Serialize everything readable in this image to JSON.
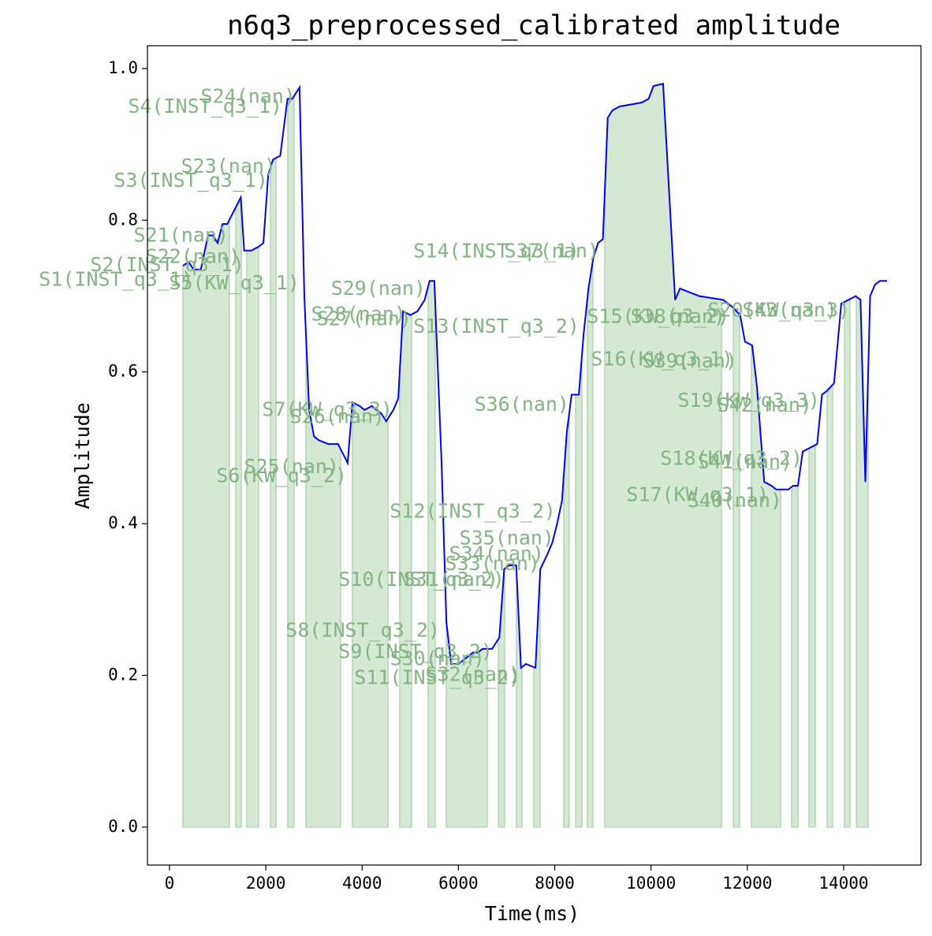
{
  "chart_data": {
    "type": "line",
    "title": "n6q3_preprocessed_calibrated amplitude",
    "xlabel": "Time(ms)",
    "ylabel": "Amplitude",
    "xlim": [
      -458,
      15605
    ],
    "ylim": [
      -0.05,
      1.03
    ],
    "xticks": [
      0,
      2000,
      4000,
      6000,
      8000,
      10000,
      12000,
      14000
    ],
    "yticks": [
      {
        "value": 0,
        "label": "0.0"
      },
      0.2,
      0.4,
      0.6,
      0.8,
      {
        "value": 1,
        "label": "1.0"
      }
    ],
    "x": [
      278,
      400,
      500,
      650,
      800,
      900,
      1000,
      1100,
      1200,
      1480,
      1550,
      1700,
      1850,
      1950,
      2050,
      2150,
      2300,
      2450,
      2550,
      2700,
      2800,
      2900,
      3000,
      3100,
      3300,
      3500,
      3700,
      3800,
      3950,
      4050,
      4200,
      4400,
      4500,
      4650,
      4750,
      4850,
      5000,
      5150,
      5300,
      5400,
      5500,
      5650,
      5750,
      5850,
      6000,
      6100,
      6200,
      6300,
      6400,
      6500,
      6700,
      6850,
      6950,
      7050,
      7200,
      7300,
      7400,
      7600,
      7700,
      7850,
      7950,
      8050,
      8150,
      8250,
      8350,
      8500,
      8600,
      8700,
      8800,
      8900,
      9000,
      9100,
      9200,
      9350,
      9800,
      9950,
      10050,
      10250,
      10500,
      10600,
      10800,
      11000,
      11500,
      11700,
      11850,
      11950,
      12100,
      12200,
      12350,
      12500,
      12600,
      12850,
      12950,
      13050,
      13150,
      13300,
      13450,
      13550,
      13650,
      13800,
      13950,
      14100,
      14250,
      14350,
      14450,
      14550,
      14650,
      14750,
      14900
    ],
    "series": [
      {
        "color": "#0000ff",
        "values": [
          0.74,
          0.745,
          0.735,
          0.735,
          0.78,
          0.78,
          0.77,
          0.795,
          0.795,
          0.83,
          0.76,
          0.76,
          0.765,
          0.77,
          0.86,
          0.88,
          0.885,
          0.96,
          0.96,
          0.975,
          0.7,
          0.55,
          0.515,
          0.51,
          0.505,
          0.505,
          0.48,
          0.56,
          0.555,
          0.55,
          0.555,
          0.545,
          0.535,
          0.55,
          0.565,
          0.68,
          0.675,
          0.68,
          0.695,
          0.72,
          0.72,
          0.48,
          0.27,
          0.215,
          0.215,
          0.22,
          0.225,
          0.23,
          0.23,
          0.235,
          0.235,
          0.25,
          0.34,
          0.345,
          0.345,
          0.21,
          0.215,
          0.21,
          0.34,
          0.36,
          0.375,
          0.4,
          0.43,
          0.52,
          0.57,
          0.57,
          0.65,
          0.71,
          0.75,
          0.77,
          0.775,
          0.935,
          0.945,
          0.95,
          0.955,
          0.96,
          0.977,
          0.98,
          0.695,
          0.71,
          0.705,
          0.7,
          0.695,
          0.685,
          0.675,
          0.64,
          0.635,
          0.58,
          0.455,
          0.45,
          0.445,
          0.445,
          0.45,
          0.45,
          0.495,
          0.5,
          0.505,
          0.57,
          0.575,
          0.585,
          0.69,
          0.695,
          0.7,
          0.695,
          0.455,
          0.7,
          0.715,
          0.72,
          0.72
        ]
      }
    ],
    "fill_color": "#d5e8d4",
    "fill_regions": [
      [
        278,
        1244
      ],
      [
        1375,
        1490
      ],
      [
        1605,
        1850
      ],
      [
        2096,
        2211
      ],
      [
        2456,
        2587
      ],
      [
        2833,
        3553
      ],
      [
        3799,
        4536
      ],
      [
        4781,
        5027
      ],
      [
        5371,
        5518
      ],
      [
        5747,
        6599
      ],
      [
        6828,
        6959
      ],
      [
        7205,
        7320
      ],
      [
        7565,
        7696
      ],
      [
        8187,
        8302
      ],
      [
        8433,
        8564
      ],
      [
        8678,
        8793
      ],
      [
        9039,
        11462
      ],
      [
        11708,
        11839
      ],
      [
        12084,
        12690
      ],
      [
        12920,
        13050
      ],
      [
        13280,
        13411
      ],
      [
        13656,
        13771
      ],
      [
        14017,
        14131
      ],
      [
        14262,
        14508
      ]
    ],
    "annotations": [
      {
        "text": "S1(INST_q3_1)",
        "x": 491,
        "y": 0.721
      },
      {
        "text": "S2(INST_q3_1)",
        "x": 1556,
        "y": 0.74
      },
      {
        "text": "S3(INST_q3_1)",
        "x": 2047,
        "y": 0.851
      },
      {
        "text": "S4(INST_q3_1)",
        "x": 2342,
        "y": 0.949
      },
      {
        "text": "S5(KW_q3_1)",
        "x": 2702,
        "y": 0.716
      },
      {
        "text": "S6(KW_q3_2)",
        "x": 3684,
        "y": 0.462
      },
      {
        "text": "S7(KW_q3_3)",
        "x": 4634,
        "y": 0.549
      },
      {
        "text": "S8(INST_q3_2)",
        "x": 5616,
        "y": 0.258
      },
      {
        "text": "S9(INST_q3_2)",
        "x": 6713,
        "y": 0.23
      },
      {
        "text": "S10(INST_q3_2)",
        "x": 6959,
        "y": 0.325
      },
      {
        "text": "S11(INST_q3_2)",
        "x": 7287,
        "y": 0.196
      },
      {
        "text": "S12(INST_q3_2)",
        "x": 8023,
        "y": 0.415
      },
      {
        "text": "S13(INST_q3_2)",
        "x": 8515,
        "y": 0.659
      },
      {
        "text": "S14(INST_q3_1)",
        "x": 8515,
        "y": 0.758
      },
      {
        "text": "S15(KW_q3_2)",
        "x": 11626,
        "y": 0.672
      },
      {
        "text": "S16(KW_q3_1)",
        "x": 11708,
        "y": 0.616
      },
      {
        "text": "S17(KW_q3_1)",
        "x": 12445,
        "y": 0.437
      },
      {
        "text": "S18(KW_q3_2)",
        "x": 13149,
        "y": 0.485
      },
      {
        "text": "S19(KW_q3_3)",
        "x": 13509,
        "y": 0.561
      },
      {
        "text": "S20(KW_q3_3)",
        "x": 14131,
        "y": 0.68
      },
      {
        "text": "S21(nan)",
        "x": 1228,
        "y": 0.779
      },
      {
        "text": "S22(nan)",
        "x": 1474,
        "y": 0.751
      },
      {
        "text": "S23(nan)",
        "x": 2211,
        "y": 0.87
      },
      {
        "text": "S24(nan)",
        "x": 2620,
        "y": 0.962
      },
      {
        "text": "S25(nan)",
        "x": 3520,
        "y": 0.474
      },
      {
        "text": "S26(nan)",
        "x": 4470,
        "y": 0.54
      },
      {
        "text": "S27(nan)",
        "x": 5027,
        "y": 0.669
      },
      {
        "text": "S28(nan)",
        "x": 4912,
        "y": 0.675
      },
      {
        "text": "S29(nan)",
        "x": 5322,
        "y": 0.709
      },
      {
        "text": "S30(nan)",
        "x": 6550,
        "y": 0.221
      },
      {
        "text": "S31(nan)",
        "x": 6828,
        "y": 0.325
      },
      {
        "text": "S32(nan)",
        "x": 7287,
        "y": 0.2
      },
      {
        "text": "S33(nan)",
        "x": 7696,
        "y": 0.346
      },
      {
        "text": "S34(nan)",
        "x": 7778,
        "y": 0.359
      },
      {
        "text": "S35(nan)",
        "x": 7991,
        "y": 0.38
      },
      {
        "text": "S36(nan)",
        "x": 8302,
        "y": 0.556
      },
      {
        "text": "S37(nan)",
        "x": 8924,
        "y": 0.758
      },
      {
        "text": "S38(nan)",
        "x": 11544,
        "y": 0.672
      },
      {
        "text": "S39(nan)",
        "x": 11790,
        "y": 0.613
      },
      {
        "text": "S40(nan)",
        "x": 12723,
        "y": 0.429
      },
      {
        "text": "S41(nan)",
        "x": 12936,
        "y": 0.48
      },
      {
        "text": "S42(nan)",
        "x": 13345,
        "y": 0.555
      },
      {
        "text": "S43(nan)",
        "x": 13869,
        "y": 0.68
      }
    ]
  }
}
